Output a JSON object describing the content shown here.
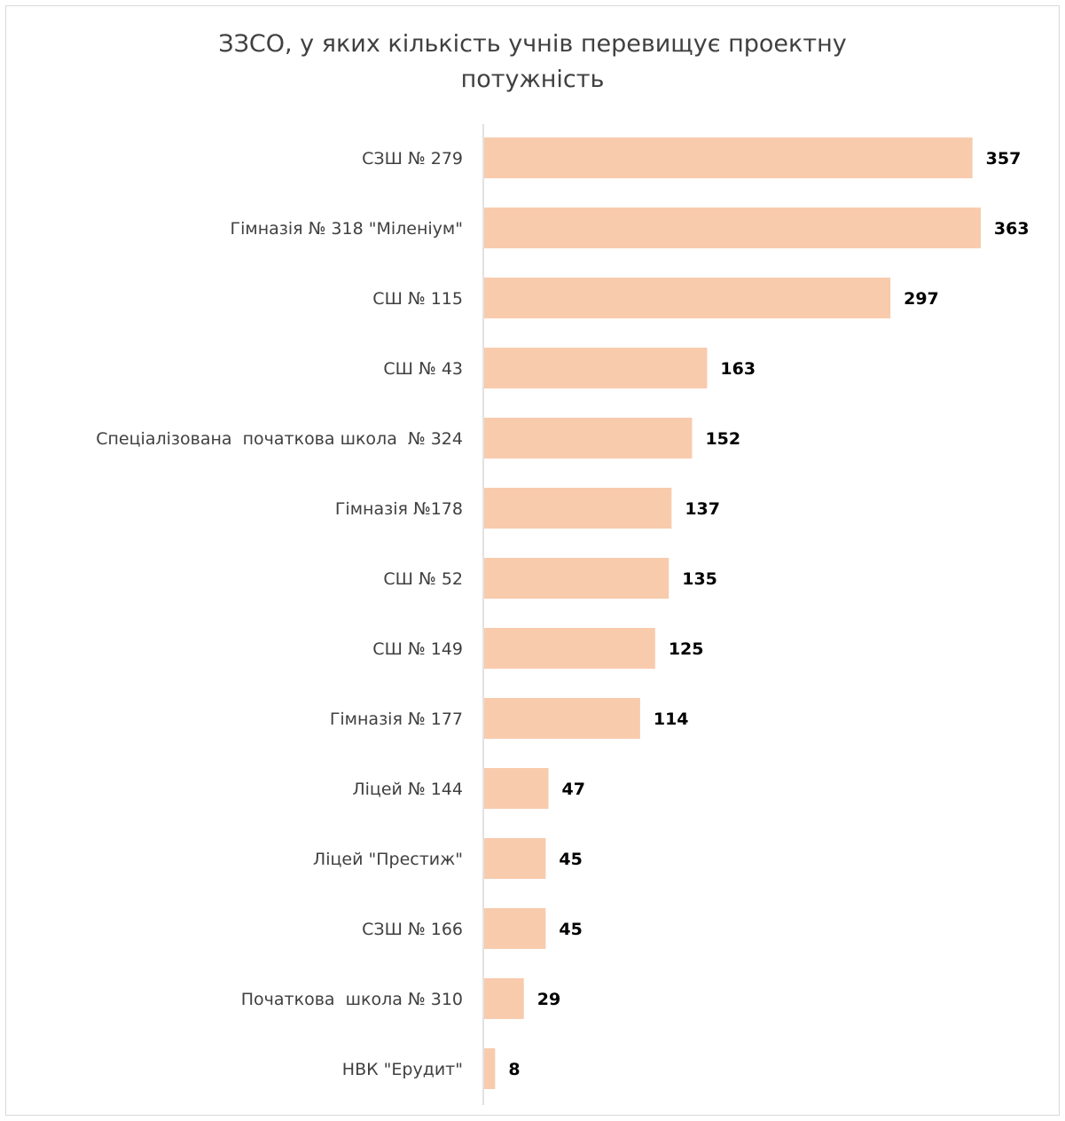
{
  "chart_data": {
    "type": "bar",
    "orientation": "horizontal",
    "title_line1": "ЗЗСО, у яких кількість учнів перевищує проектну",
    "title_line2": "потужність",
    "categories": [
      "СЗШ № 279",
      "Гімназія № 318 \"Міленіум\"",
      "СШ № 115",
      "СШ № 43",
      "Спеціалізована  початкова школа  № 324",
      "Гімназія №178",
      "СШ № 52",
      "СШ № 149",
      "Гімназія № 177",
      "Ліцей № 144",
      "Ліцей \"Престиж\"",
      "СЗШ № 166",
      "Початкова  школа № 310",
      "НВК \"Ерудит\""
    ],
    "values": [
      357,
      363,
      297,
      163,
      152,
      137,
      135,
      125,
      114,
      47,
      45,
      45,
      29,
      8
    ],
    "xlim": [
      0,
      370
    ],
    "grid": false,
    "data_labels": true,
    "bar_color": "#F8CBAD",
    "axis_color": "#D9D9D9"
  }
}
